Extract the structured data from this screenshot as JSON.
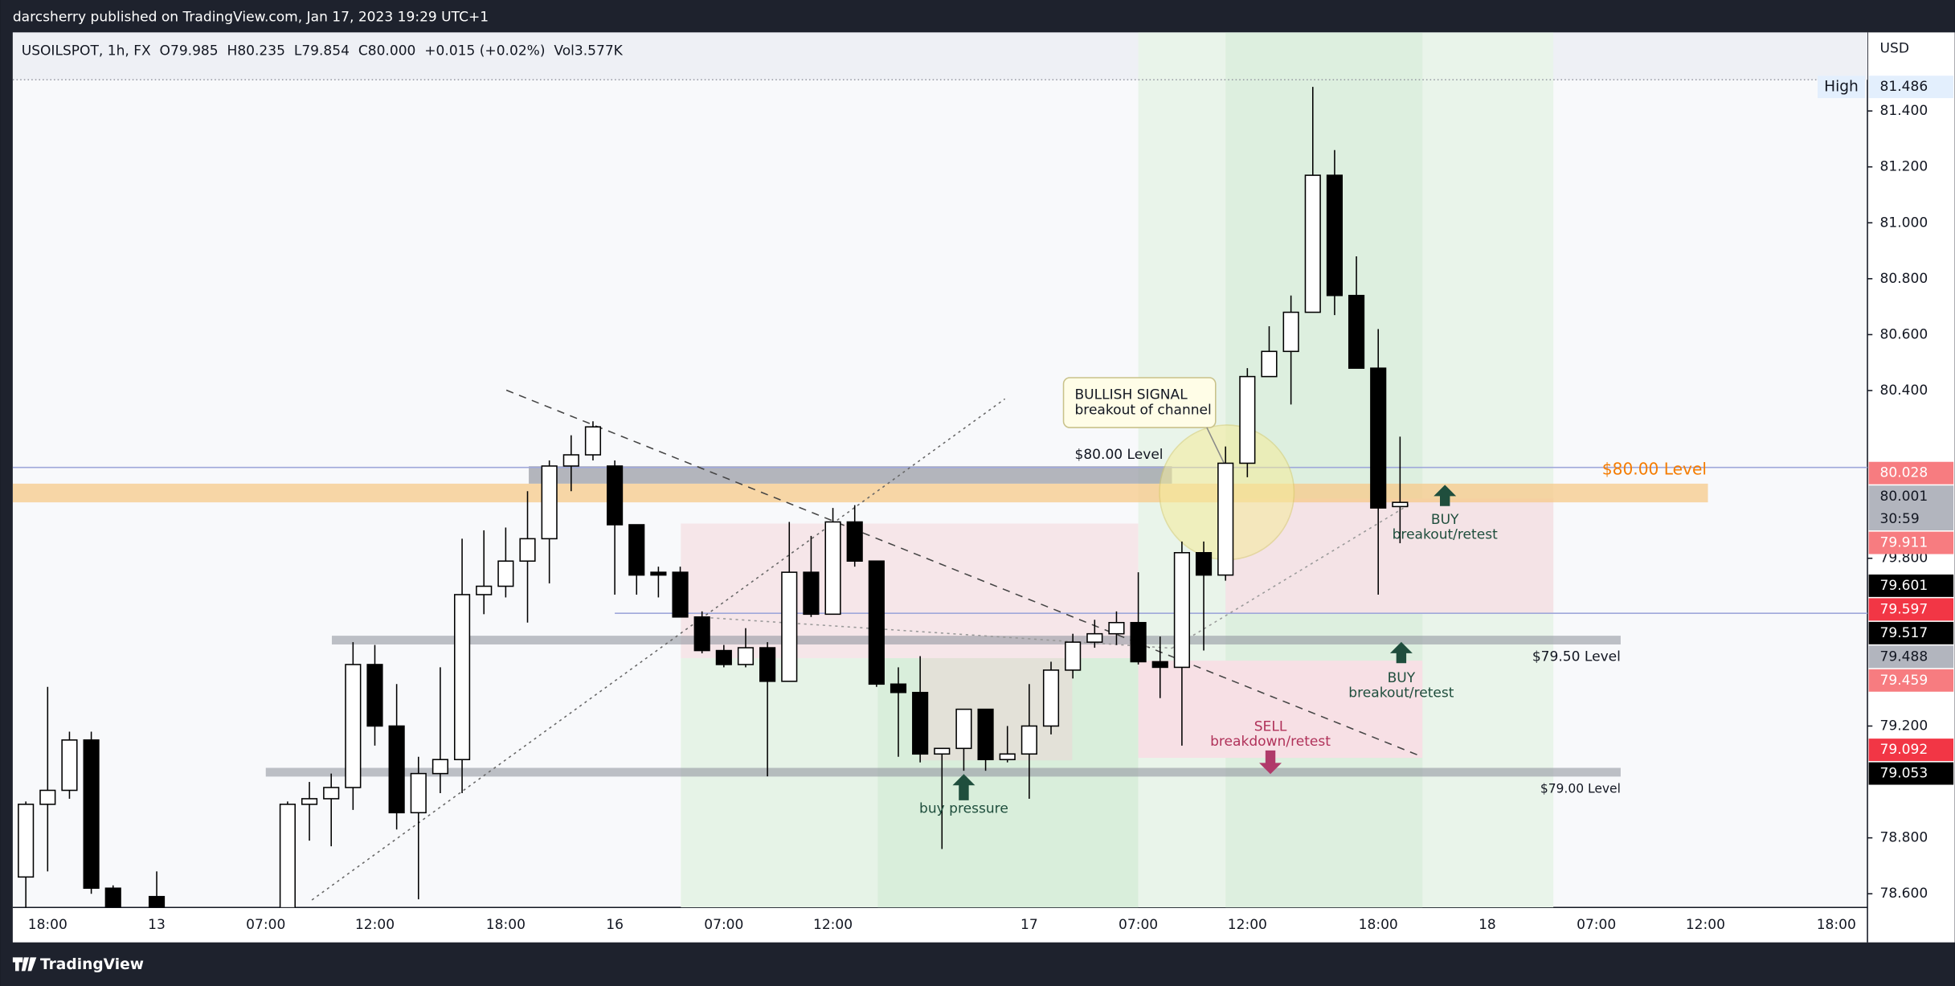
{
  "header": {
    "publisher": "darcsherry published on TradingView.com, Jan 17, 2023 19:29 UTC+1",
    "brand": "TradingView"
  },
  "chart_data": {
    "type": "candlestick",
    "symbol": "USOILSPOT, 1h, FX",
    "info_values": [
      "O79.985",
      "H80.235",
      "L79.854",
      "C80.000",
      "+0.015 (+0.02%)",
      "Vol3.577K"
    ],
    "currency": "USD",
    "up_color": "#ffffff",
    "down_color": "#000000",
    "wick_color": "#000000",
    "grid": false,
    "ylim": [
      78.551,
      81.681
    ],
    "yticks": [
      {
        "value": 78.6,
        "label": "78.600"
      },
      {
        "value": 78.8,
        "label": "78.800"
      },
      {
        "value": 79.2,
        "label": "79.200"
      },
      {
        "value": 79.8,
        "label": "79.800"
      },
      {
        "value": 80.4,
        "label": "80.400"
      },
      {
        "value": 80.6,
        "label": "80.600"
      },
      {
        "value": 80.8,
        "label": "80.800"
      },
      {
        "value": 81,
        "label": "81.000"
      },
      {
        "value": 81.2,
        "label": "81.200"
      },
      {
        "value": 81.4,
        "label": "81.400"
      }
    ],
    "categories": [
      null,
      "18:00",
      null,
      null,
      null,
      null,
      "13",
      null,
      null,
      null,
      null,
      "07:00",
      null,
      null,
      null,
      null,
      "12:00",
      null,
      null,
      null,
      null,
      null,
      "18:00",
      null,
      null,
      null,
      null,
      "16",
      null,
      null,
      null,
      null,
      "07:00",
      null,
      null,
      null,
      null,
      "12:00",
      null,
      null,
      null,
      null,
      null,
      null,
      null,
      null,
      "17",
      null,
      null,
      null,
      null,
      "07:00",
      null,
      null,
      null,
      null,
      "12:00",
      null,
      null,
      null,
      null,
      null,
      "18:00",
      null,
      null,
      null,
      null,
      "18",
      null,
      null,
      null,
      null,
      "07:00",
      null,
      null,
      null,
      null,
      "12:00",
      null,
      null,
      null,
      null,
      null,
      "18:00"
    ],
    "open": [
      78.66,
      78.92,
      78.97,
      79.15,
      78.62,
      null,
      78.59,
      null,
      null,
      null,
      null,
      null,
      78.55,
      78.92,
      78.94,
      78.98,
      79.42,
      79.2,
      78.89,
      79.03,
      79.08,
      79.67,
      79.7,
      79.79,
      79.87,
      80.13,
      80.17,
      80.13,
      79.92,
      79.75,
      79.75,
      79.59,
      79.47,
      79.42,
      79.48,
      79.36,
      79.75,
      79.6,
      79.93,
      79.79,
      79.35,
      79.32,
      79.1,
      79.12,
      79.26,
      79.08,
      79.1,
      79.2,
      79.4,
      79.5,
      79.53,
      79.57,
      79.43,
      79.41,
      79.82,
      79.74,
      80.14,
      80.45,
      80.54,
      80.68,
      81.17,
      80.74,
      80.48,
      79.985,
      null,
      null,
      null,
      null,
      null,
      null,
      null,
      null,
      null,
      null,
      null,
      null,
      null,
      null,
      null,
      null,
      null,
      null,
      null,
      null
    ],
    "high": [
      78.93,
      79.34,
      79.18,
      79.18,
      78.63,
      null,
      78.68,
      null,
      null,
      null,
      null,
      null,
      78.93,
      79.0,
      79.03,
      79.5,
      79.49,
      79.35,
      79.09,
      79.41,
      79.87,
      79.9,
      79.91,
      80.04,
      80.15,
      80.24,
      80.29,
      80.15,
      79.92,
      79.77,
      79.77,
      79.61,
      79.49,
      79.55,
      79.5,
      79.93,
      79.88,
      79.98,
      79.99,
      79.79,
      79.41,
      79.45,
      79.12,
      79.26,
      79.26,
      79.2,
      79.35,
      79.43,
      79.53,
      79.58,
      79.61,
      79.75,
      79.52,
      79.86,
      79.86,
      80.2,
      80.48,
      80.63,
      80.74,
      81.486,
      81.26,
      80.88,
      80.62,
      80.235,
      null,
      null,
      null,
      null,
      null,
      null,
      null,
      null,
      null,
      null,
      null,
      null,
      null,
      null,
      null,
      null,
      null,
      null,
      null,
      null
    ],
    "low": [
      78.53,
      78.68,
      78.94,
      78.6,
      78.52,
      null,
      78.52,
      null,
      null,
      null,
      null,
      null,
      78.5,
      78.79,
      78.77,
      78.9,
      79.13,
      78.83,
      78.58,
      78.96,
      78.96,
      79.6,
      79.66,
      79.57,
      79.71,
      80.04,
      80.15,
      79.67,
      79.67,
      79.66,
      79.59,
      79.46,
      79.41,
      79.41,
      79.02,
      79.36,
      79.59,
      79.6,
      79.77,
      79.34,
      79.09,
      79.07,
      78.76,
      79.04,
      79.04,
      79.07,
      78.94,
      79.17,
      79.37,
      79.48,
      79.49,
      79.42,
      79.3,
      79.13,
      79.47,
      79.72,
      80.09,
      80.45,
      80.35,
      80.68,
      80.67,
      80.48,
      79.67,
      79.854,
      null,
      null,
      null,
      null,
      null,
      null,
      null,
      null,
      null,
      null,
      null,
      null,
      null,
      null,
      null,
      null,
      null,
      null,
      null,
      null
    ],
    "close": [
      78.92,
      78.97,
      79.15,
      78.62,
      78.55,
      null,
      78.55,
      null,
      null,
      null,
      null,
      null,
      78.92,
      78.94,
      78.98,
      79.42,
      79.2,
      78.89,
      79.03,
      79.08,
      79.67,
      79.7,
      79.79,
      79.87,
      80.13,
      80.17,
      80.27,
      79.92,
      79.74,
      79.74,
      79.59,
      79.47,
      79.42,
      79.48,
      79.36,
      79.75,
      79.6,
      79.93,
      79.79,
      79.35,
      79.32,
      79.1,
      79.12,
      79.26,
      79.08,
      79.1,
      79.2,
      79.4,
      79.5,
      79.53,
      79.57,
      79.43,
      79.41,
      79.82,
      79.74,
      80.14,
      80.45,
      80.54,
      80.68,
      81.17,
      80.74,
      80.48,
      79.98,
      80.0,
      null,
      null,
      null,
      null,
      null,
      null,
      null,
      null,
      null,
      null,
      null,
      null,
      null,
      null,
      null,
      null,
      null,
      null,
      null,
      null
    ],
    "price_labels": [
      {
        "value": 81.486,
        "tag": "High",
        "bg": "#e3effd",
        "fg": "#131722"
      },
      {
        "value": 80.028,
        "bg": "#f77c80",
        "fg": "#ffffff"
      },
      {
        "value": 80.001,
        "countdown": "30:59",
        "bg": "#b2b5be",
        "fg": "#131722"
      },
      {
        "value": 79.911,
        "bg": "#f77c80",
        "fg": "#ffffff"
      },
      {
        "value": 79.601,
        "bg": "#000000",
        "fg": "#ffffff"
      },
      {
        "value": 79.597,
        "bg": "#f23645",
        "fg": "#ffffff"
      },
      {
        "value": 79.517,
        "bg": "#000000",
        "fg": "#ffffff"
      },
      {
        "value": 79.488,
        "bg": "#b2b5be",
        "fg": "#131722"
      },
      {
        "value": 79.459,
        "bg": "#f77c80",
        "fg": "#ffffff"
      },
      {
        "value": 79.092,
        "bg": "#f23645",
        "fg": "#ffffff"
      },
      {
        "value": 79.053,
        "bg": "#000000",
        "fg": "#ffffff"
      }
    ],
    "annotations": [
      "BULLISH SIGNAL",
      "breakout of channel",
      "$80.00 Level",
      "$80.00 Level",
      "BUY",
      "breakout/retest",
      "BUY",
      "breakout/retest",
      "$79.50 Level",
      "SELL",
      "breakdown/retest",
      "$79.00 Level",
      "buy pressure"
    ]
  }
}
